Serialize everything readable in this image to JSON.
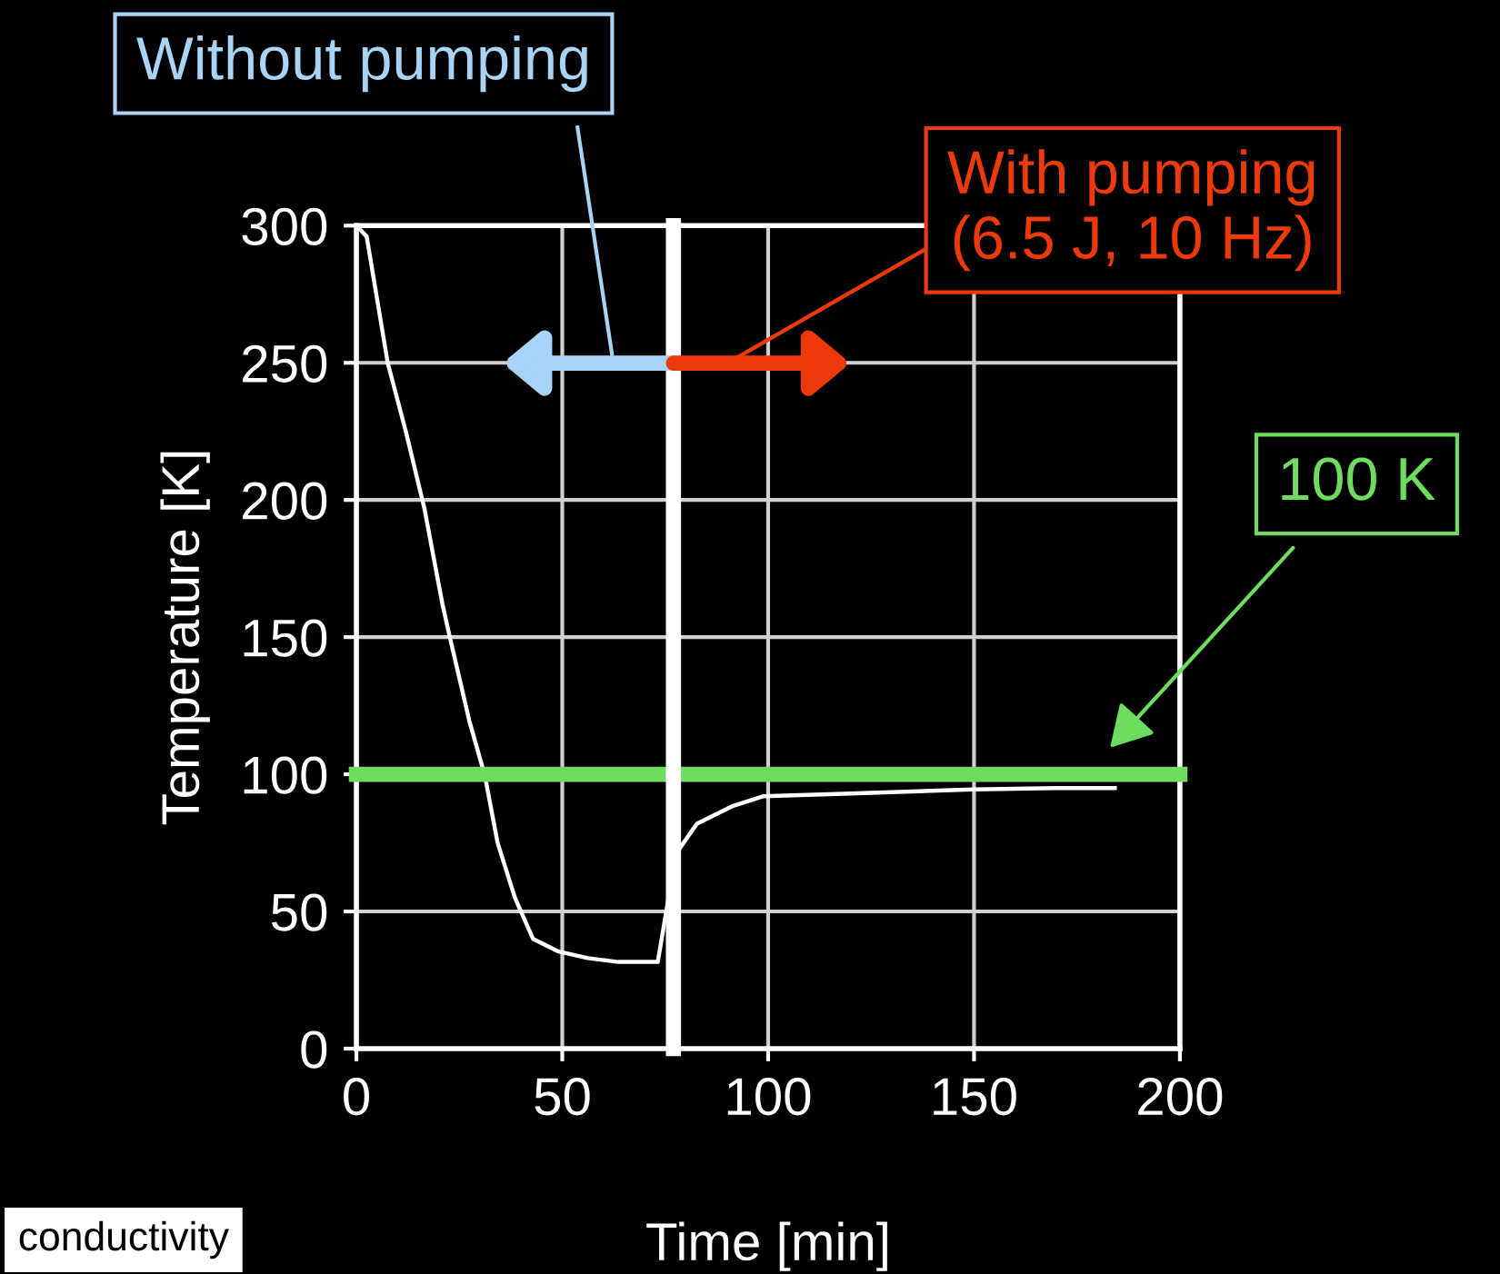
{
  "chart_data": {
    "type": "line",
    "xlabel": "Time [min]",
    "ylabel": "Temperature [K]",
    "xlim": [
      0,
      200
    ],
    "ylim": [
      0,
      300
    ],
    "xticks": [
      0,
      50,
      100,
      150,
      200
    ],
    "yticks": [
      0,
      50,
      100,
      150,
      200,
      250,
      300
    ],
    "grid": true,
    "series": [
      {
        "color": "#ffffff",
        "x": [
          0,
          2.5,
          7.6,
          12,
          16.5,
          20.9,
          23,
          27.5,
          31.2,
          34.3,
          38.5,
          42.9,
          48.9,
          56.2,
          63.6,
          73.2,
          77.6,
          82.7,
          91.5,
          98.9,
          120,
          149.7,
          170,
          184.2
        ],
        "values": [
          300,
          296,
          250,
          225,
          197,
          162,
          148,
          119,
          99.5,
          75,
          55,
          40,
          35.5,
          33,
          31.6,
          31.6,
          71,
          82,
          88.5,
          92,
          93,
          94.5,
          95,
          95
        ]
      }
    ],
    "ref_lines": [
      {
        "axis": "y",
        "value": 100,
        "color": "#6edc5f"
      },
      {
        "axis": "x",
        "value": 77,
        "color": "#ffffff"
      }
    ],
    "annotations": [
      "Without pumping",
      "With pumping\n(6.5 J, 10 Hz)",
      "100 K",
      "conductivity"
    ]
  }
}
